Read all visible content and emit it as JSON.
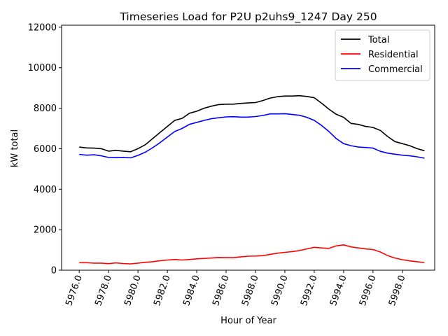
{
  "chart_data": {
    "type": "line",
    "title": "Timeseries Load for P2U p2uhs9_1247  Day 250",
    "xlabel": "Hour of Year",
    "ylabel": "kW total",
    "xlim": [
      5974.8,
      6000.2
    ],
    "ylim": [
      0,
      12100
    ],
    "x_ticks": [
      5976,
      5978,
      5980,
      5982,
      5984,
      5986,
      5988,
      5990,
      5992,
      5994,
      5996,
      5998
    ],
    "x_tick_labels": [
      "5976.0",
      "5978.0",
      "5980.0",
      "5982.0",
      "5984.0",
      "5986.0",
      "5988.0",
      "5990.0",
      "5992.0",
      "5994.0",
      "5996.0",
      "5998.0"
    ],
    "y_ticks": [
      0,
      2000,
      4000,
      6000,
      8000,
      10000,
      12000
    ],
    "y_tick_labels": [
      "0",
      "2000",
      "4000",
      "6000",
      "8000",
      "10000",
      "12000"
    ],
    "grid": false,
    "legend_position": "top-right",
    "x": [
      5976,
      5976.5,
      5977,
      5977.5,
      5978,
      5978.5,
      5979,
      5979.5,
      5980,
      5980.5,
      5981,
      5981.5,
      5982,
      5982.5,
      5983,
      5983.5,
      5984,
      5984.5,
      5985,
      5985.5,
      5986,
      5986.5,
      5987,
      5987.5,
      5988,
      5988.5,
      5989,
      5989.5,
      5990,
      5990.5,
      5991,
      5991.5,
      5992,
      5992.5,
      5993,
      5993.5,
      5994,
      5994.5,
      5995,
      5995.5,
      5996,
      5996.5,
      5997,
      5997.5,
      5998,
      5998.5,
      5999,
      5999.5
    ],
    "series": [
      {
        "name": "Total",
        "color": "#000000",
        "values": [
          6080,
          6040,
          6030,
          6000,
          5880,
          5920,
          5880,
          5850,
          6000,
          6200,
          6500,
          6800,
          7100,
          7400,
          7500,
          7750,
          7850,
          8000,
          8100,
          8180,
          8200,
          8200,
          8240,
          8260,
          8280,
          8380,
          8500,
          8570,
          8600,
          8600,
          8620,
          8580,
          8520,
          8250,
          7950,
          7700,
          7550,
          7250,
          7200,
          7100,
          7050,
          6900,
          6600,
          6350,
          6250,
          6150,
          6000,
          5900
        ]
      },
      {
        "name": "Residential",
        "color": "#ff0000",
        "values": [
          370,
          370,
          350,
          350,
          320,
          360,
          330,
          310,
          350,
          390,
          420,
          470,
          500,
          530,
          500,
          530,
          560,
          580,
          600,
          630,
          620,
          620,
          660,
          690,
          700,
          720,
          780,
          840,
          880,
          920,
          970,
          1050,
          1130,
          1100,
          1080,
          1200,
          1250,
          1150,
          1100,
          1050,
          1020,
          900,
          720,
          600,
          520,
          460,
          420,
          380
        ]
      },
      {
        "name": "Commercial",
        "color": "#0000ff",
        "values": [
          5720,
          5680,
          5700,
          5650,
          5570,
          5560,
          5570,
          5550,
          5670,
          5830,
          6050,
          6300,
          6580,
          6850,
          7000,
          7200,
          7300,
          7400,
          7480,
          7530,
          7570,
          7580,
          7560,
          7560,
          7590,
          7640,
          7720,
          7720,
          7730,
          7690,
          7650,
          7550,
          7400,
          7150,
          6850,
          6500,
          6250,
          6150,
          6080,
          6060,
          6030,
          5870,
          5780,
          5730,
          5680,
          5650,
          5600,
          5530
        ]
      }
    ]
  }
}
